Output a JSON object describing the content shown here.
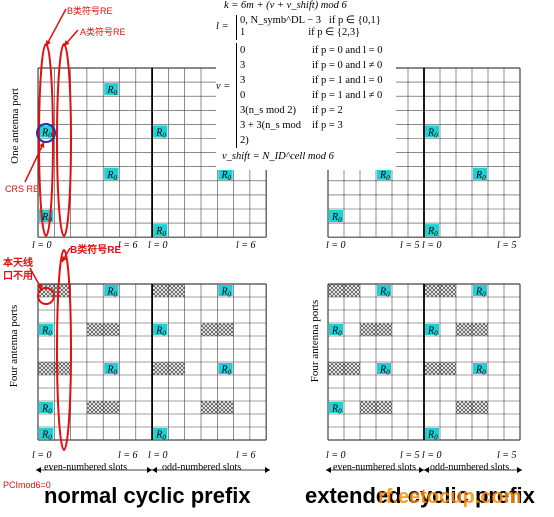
{
  "labels": {
    "one_antenna_port": "One antenna port",
    "four_antenna_ports": "Four antenna ports",
    "r0": "R",
    "r0_sub": "0",
    "l_eq_0": "l = 0",
    "l_eq_6": "l = 6",
    "l_eq_5": "l = 5",
    "even_slots": "even-numbered slots",
    "odd_slots": "odd-numbered slots",
    "normal_cp": "normal cyclic prefix",
    "extended_cp": "extended cyclic prefix",
    "watermark": "rf.eetocup.com"
  },
  "annotations": {
    "b_re_top": "B类符号RE",
    "a_re_top": "A类符号RE",
    "crs_re": "CRS RE",
    "b_re_bottom": "B类符号RE",
    "not_used": "本天线口不用",
    "pci_mod": "PCImod6=0"
  },
  "formulas": {
    "k": "k = 6m + (v + v_shift) mod 6",
    "l_cases": [
      "0, N_symb^DL − 3   if p ∈ {0,1}",
      "1                        if p ∈ {2,3}"
    ],
    "v_cases": [
      [
        "0",
        "if p = 0 and l = 0"
      ],
      [
        "3",
        "if p = 0 and l ≠ 0"
      ],
      [
        "3",
        "if p = 1 and l = 0"
      ],
      [
        "0",
        "if p = 1 and l ≠ 0"
      ],
      [
        "3(n_s mod 2)",
        "if p = 2"
      ],
      [
        "3 + 3(n_s mod 2)",
        "if p = 3"
      ]
    ],
    "v_shift": "v_shift = N_ID^cell mod 6"
  },
  "colors": {
    "crs_fill": "#1fd1d6",
    "hatch": "#555555",
    "grid": "#444444",
    "annotation_red": "#e01010",
    "watermark": "#ff8a00"
  }
}
